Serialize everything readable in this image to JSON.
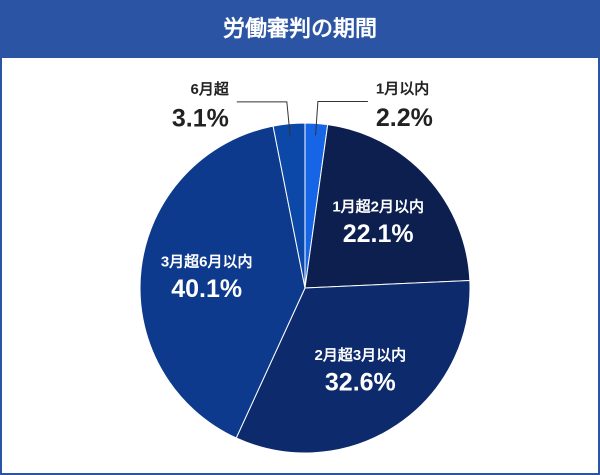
{
  "chart_data": {
    "type": "pie",
    "title": "労働審判の期間",
    "categories": [
      "1月以内",
      "1月超2月以内",
      "2月超3月以内",
      "3月超6月以内",
      "6月超"
    ],
    "values": [
      2.2,
      22.1,
      32.6,
      40.1,
      3.1
    ],
    "value_labels": [
      "2.2%",
      "22.1%",
      "32.6%",
      "40.1%",
      "3.1%"
    ],
    "colors": [
      "#1565e6",
      "#0c1f4f",
      "#0c2a6c",
      "#0d3a8c",
      "#0b48a8"
    ]
  }
}
